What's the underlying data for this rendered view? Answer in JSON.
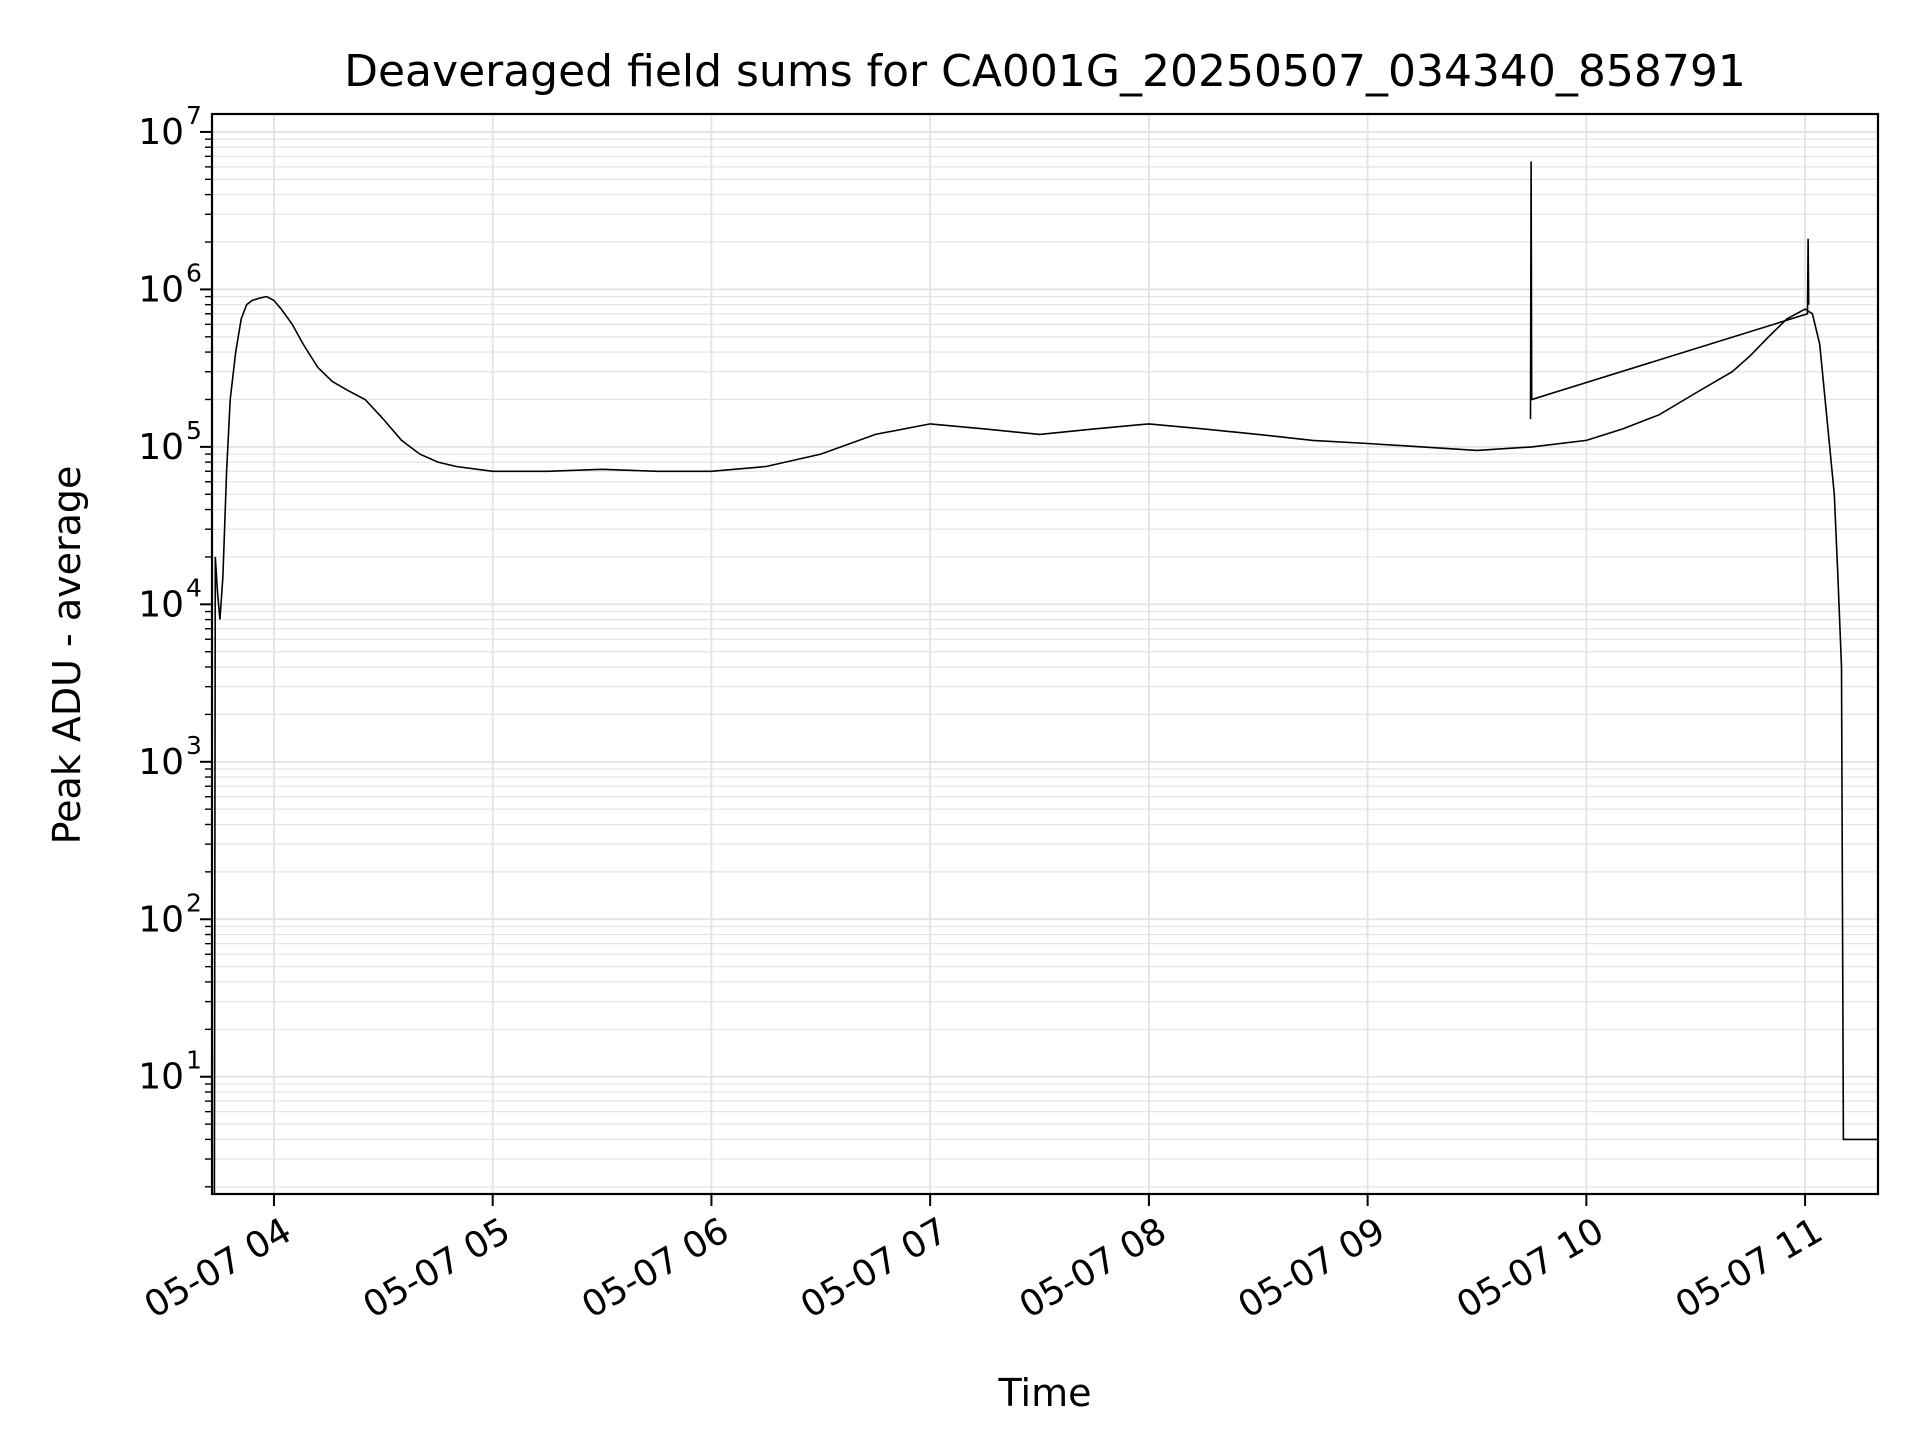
{
  "chart_data": {
    "type": "line",
    "title": "Deaveraged field sums for CA001G_20250507_034340_858791",
    "xlabel": "Time",
    "ylabel": "Peak ADU - average",
    "yscale": "log",
    "xlim": [
      "2025-05-07 03:43",
      "2025-05-07 11:20"
    ],
    "ylim": [
      1.8,
      13000000
    ],
    "grid": true,
    "line_color": "#000000",
    "grid_color": "#e3e3e3",
    "x_ticks": [
      {
        "value": "2025-05-07 04:00",
        "label": "05-07 04"
      },
      {
        "value": "2025-05-07 05:00",
        "label": "05-07 05"
      },
      {
        "value": "2025-05-07 06:00",
        "label": "05-07 06"
      },
      {
        "value": "2025-05-07 07:00",
        "label": "05-07 07"
      },
      {
        "value": "2025-05-07 08:00",
        "label": "05-07 08"
      },
      {
        "value": "2025-05-07 09:00",
        "label": "05-07 09"
      },
      {
        "value": "2025-05-07 10:00",
        "label": "05-07 10"
      },
      {
        "value": "2025-05-07 11:00",
        "label": "05-07 11"
      }
    ],
    "y_ticks": [
      {
        "value": 10,
        "base": "10",
        "exp": "1"
      },
      {
        "value": 100,
        "base": "10",
        "exp": "2"
      },
      {
        "value": 1000,
        "base": "10",
        "exp": "3"
      },
      {
        "value": 10000,
        "base": "10",
        "exp": "4"
      },
      {
        "value": 100000,
        "base": "10",
        "exp": "5"
      },
      {
        "value": 1000000,
        "base": "10",
        "exp": "6"
      },
      {
        "value": 10000000,
        "base": "10",
        "exp": "7"
      }
    ],
    "series": [
      {
        "x": [
          "2025-05-07 03:43:40",
          "2025-05-07 03:43:55",
          "2025-05-07 03:44:30",
          "2025-05-07 03:45:10",
          "2025-05-07 03:46:00",
          "2025-05-07 03:47:00",
          "2025-05-07 03:48:00",
          "2025-05-07 03:49:30",
          "2025-05-07 03:51:00",
          "2025-05-07 03:52:30",
          "2025-05-07 03:54:00",
          "2025-05-07 03:56:00",
          "2025-05-07 03:58:00",
          "2025-05-07 04:00:00",
          "2025-05-07 04:02:00",
          "2025-05-07 04:05:00",
          "2025-05-07 04:08:00",
          "2025-05-07 04:12:00",
          "2025-05-07 04:16:00",
          "2025-05-07 04:20:00",
          "2025-05-07 04:25:00",
          "2025-05-07 04:30:00",
          "2025-05-07 04:35:00",
          "2025-05-07 04:40:00",
          "2025-05-07 04:45:00",
          "2025-05-07 04:50:00",
          "2025-05-07 05:00:00",
          "2025-05-07 05:15:00",
          "2025-05-07 05:30:00",
          "2025-05-07 05:45:00",
          "2025-05-07 06:00:00",
          "2025-05-07 06:15:00",
          "2025-05-07 06:30:00",
          "2025-05-07 06:45:00",
          "2025-05-07 07:00:00",
          "2025-05-07 07:15:00",
          "2025-05-07 07:30:00",
          "2025-05-07 07:45:00",
          "2025-05-07 08:00:00",
          "2025-05-07 08:15:00",
          "2025-05-07 08:30:00",
          "2025-05-07 08:45:00",
          "2025-05-07 09:00:00",
          "2025-05-07 09:15:00",
          "2025-05-07 09:30:00",
          "2025-05-07 09:45:00",
          "2025-05-07 10:00:00",
          "2025-05-07 10:10:00",
          "2025-05-07 10:20:00",
          "2025-05-07 10:30:00",
          "2025-05-07 10:40:00",
          "2025-05-07 10:45:00",
          "2025-05-07 10:50:00",
          "2025-05-07 10:55:00",
          "2025-05-07 11:00:00",
          "2025-05-07 11:02:00",
          "2025-05-07 11:04:00",
          "2025-05-07 11:06:00",
          "2025-05-07 11:08:00",
          "2025-05-07 11:09:00",
          "2025-05-07 11:10:00",
          "2025-05-07 11:10:30",
          "2025-05-07 11:20:00"
        ],
        "y": [
          1.8,
          20000,
          12000,
          8000,
          15000,
          70000,
          200000,
          400000,
          650000,
          800000,
          850000,
          880000,
          900000,
          850000,
          750000,
          600000,
          450000,
          320000,
          260000,
          230000,
          200000,
          150000,
          110000,
          90000,
          80000,
          75000,
          70000,
          70000,
          72000,
          70000,
          70000,
          75000,
          90000,
          120000,
          140000,
          130000,
          120000,
          130000,
          140000,
          130000,
          120000,
          110000,
          105000,
          100000,
          95000,
          100000,
          110000,
          130000,
          160000,
          220000,
          300000,
          380000,
          500000,
          650000,
          750000,
          700000,
          450000,
          150000,
          50000,
          15000,
          4000,
          4,
          4
        ]
      },
      {
        "x": [
          "2025-05-07 09:44:40",
          "2025-05-07 09:44:50",
          "2025-05-07 09:45:00",
          "2025-05-07 11:00:40",
          "2025-05-07 11:00:50",
          "2025-05-07 11:01:00"
        ],
        "y": [
          150000,
          6500000,
          200000,
          700000,
          2100000,
          800000
        ]
      }
    ]
  }
}
